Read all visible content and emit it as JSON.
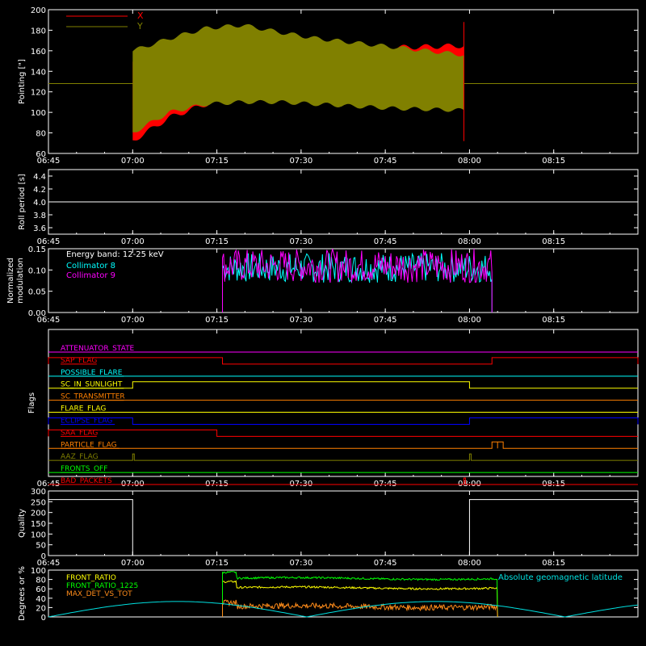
{
  "x_ticks": [
    "06:45",
    "07:00",
    "07:15",
    "07:30",
    "07:45",
    "08:00",
    "08:15"
  ],
  "chart_data": [
    {
      "type": "line",
      "panel": "pointing",
      "ylabel": "Pointing [\"]",
      "ylim": [
        60,
        200
      ],
      "y_ticks": [
        "60",
        "80",
        "100",
        "120",
        "140",
        "160",
        "180",
        "200"
      ],
      "legend": [
        {
          "name": "X",
          "color": "#ff0000"
        },
        {
          "name": "Y",
          "color": "#808000"
        }
      ],
      "envelope": {
        "start": "07:00",
        "end": "07:59",
        "x_low": [
          72,
          95,
          108,
          116,
          118,
          118,
          118,
          118,
          118,
          118
        ],
        "x_high": [
          150,
          160,
          167,
          165,
          160,
          160,
          162,
          163,
          164,
          165
        ],
        "y_low": [
          80,
          100,
          108,
          110,
          110,
          108,
          106,
          104,
          103,
          102
        ],
        "y_high": [
          160,
          172,
          182,
          185,
          178,
          172,
          168,
          164,
          160,
          156
        ]
      },
      "baseline": 128,
      "end_spike": {
        "x": "07:59",
        "top": 188,
        "bottom": 72
      }
    },
    {
      "type": "line",
      "panel": "roll",
      "ylabel": "Roll period [s]",
      "ylim": [
        3.5,
        4.5
      ],
      "y_ticks": [
        "3.6",
        "3.8",
        "4.0",
        "4.2",
        "4.4"
      ],
      "value": 4.0
    },
    {
      "type": "line",
      "panel": "modulation",
      "ylabel": "Normalized modulation",
      "ylim": [
        0,
        0.15
      ],
      "y_ticks": [
        "0.00",
        "0.05",
        "0.10",
        "0.15"
      ],
      "annotation": "Energy band: 12-25 keV",
      "series": [
        {
          "name": "Collimator 8",
          "color": "#00ffff",
          "start": "07:16",
          "end": "08:04",
          "mean": 0.105,
          "spread": 0.035
        },
        {
          "name": "Collimator 9",
          "color": "#ff00ff",
          "start": "07:16",
          "end": "08:04",
          "mean": 0.11,
          "spread": 0.04
        }
      ]
    },
    {
      "type": "line",
      "panel": "flags",
      "ylabel": "Flags",
      "flags": [
        {
          "name": "ATTENUATOR_STATE",
          "color": "#ff00ff",
          "highs": []
        },
        {
          "name": "SAP_FLAG",
          "color": "#ff0000",
          "highs": [
            [
              "06:45",
              "07:16"
            ],
            [
              "08:04",
              "08:30"
            ]
          ]
        },
        {
          "name": "POSSIBLE_FLARE",
          "color": "#00ffff",
          "highs": []
        },
        {
          "name": "SC_IN_SUNLIGHT",
          "color": "#ffff00",
          "highs": [
            [
              "07:00",
              "08:00"
            ]
          ]
        },
        {
          "name": "SC_TRANSMITTER",
          "color": "#ff8000",
          "highs": []
        },
        {
          "name": "FLARE_FLAG",
          "color": "#ffff00",
          "highs": []
        },
        {
          "name": "ECLIPSE_FLAG",
          "color": "#0000ff",
          "highs": [
            [
              "06:45",
              "07:00"
            ],
            [
              "08:00",
              "08:30"
            ]
          ]
        },
        {
          "name": "SAA_FLAG",
          "color": "#ff0000",
          "highs": [
            [
              "06:45",
              "07:15"
            ]
          ]
        },
        {
          "name": "PARTICLE_FLAG",
          "color": "#ff8000",
          "highs": [
            [
              "08:04",
              "08:05"
            ],
            [
              "08:05",
              "08:06"
            ]
          ]
        },
        {
          "name": "AAZ_FLAG",
          "color": "#808000",
          "highs": [
            [
              "07:00",
              "07:00"
            ],
            [
              "08:00",
              "08:00"
            ]
          ]
        },
        {
          "name": "FRONTS_OFF",
          "color": "#00ff00",
          "highs": []
        },
        {
          "name": "BAD_PACKETS",
          "color": "#ff0000",
          "highs": [
            [
              "07:59",
              "07:59"
            ]
          ]
        }
      ]
    },
    {
      "type": "line",
      "panel": "quality",
      "ylabel": "Quality",
      "ylim": [
        0,
        300
      ],
      "y_ticks": [
        "0",
        "50",
        "100",
        "150",
        "200",
        "250",
        "300"
      ],
      "segments": [
        [
          "06:45",
          "07:00",
          260
        ],
        [
          "08:00",
          "08:30",
          260
        ]
      ]
    },
    {
      "type": "line",
      "panel": "ratios",
      "ylabel": "Degrees or %",
      "ylim": [
        0,
        100
      ],
      "y_ticks": [
        "0",
        "20",
        "40",
        "60",
        "80",
        "100"
      ],
      "series": [
        {
          "name": "FRONT_RATIO",
          "color": "#ffff00",
          "start": "07:16",
          "end": "08:05",
          "level": 62,
          "spike": 75
        },
        {
          "name": "FRONT_RATIO_1225",
          "color": "#00ff00",
          "start": "07:16",
          "end": "08:05",
          "level": 82,
          "spike": 95
        },
        {
          "name": "MAX_DET_VS_TOT",
          "color": "#ff8c1a",
          "start": "07:16",
          "end": "08:05",
          "level": 22,
          "spike": 30
        },
        {
          "name": "Absolute geomagnetic latitude",
          "color": "#00e0e0",
          "amplitude": 33,
          "period_min": 46,
          "zero": "06:45"
        }
      ]
    }
  ]
}
